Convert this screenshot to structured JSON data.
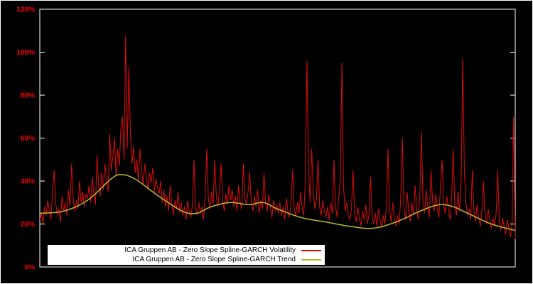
{
  "chart_data": {
    "type": "line",
    "title": "",
    "y_axis": {
      "min": 0,
      "max": 120,
      "unit": "%",
      "tick_labels": [
        "0%",
        "20%",
        "40%",
        "60%",
        "80%",
        "100%",
        "120%"
      ]
    },
    "x_axis": {
      "tick_labels": []
    },
    "legend": {
      "position": "bottom-left",
      "entries": [
        {
          "label": "ICA Gruppen AB - Zero Slope Spline-GARCH Volatility",
          "color": "#dd0d0d"
        },
        {
          "label": "ICA Gruppen AB - Zero Slope Spline-GARCH Trend",
          "color": "#bcbc2e"
        }
      ]
    },
    "series": [
      {
        "name": "ICA Gruppen AB - Zero Slope Spline-GARCH Volatility",
        "color": "#dd0d0d",
        "values": [
          22,
          25,
          20,
          28,
          24,
          31,
          26,
          22,
          35,
          45,
          30,
          24,
          27,
          21,
          33,
          26,
          30,
          24,
          36,
          28,
          48,
          32,
          26,
          31,
          27,
          40,
          30,
          35,
          28,
          34,
          32,
          38,
          30,
          42,
          34,
          29,
          52,
          38,
          33,
          44,
          36,
          48,
          40,
          35,
          62,
          45,
          52,
          60,
          42,
          55,
          47,
          65,
          70,
          50,
          108,
          55,
          93,
          62,
          48,
          56,
          44,
          50,
          40,
          55,
          45,
          38,
          48,
          42,
          36,
          44,
          39,
          46,
          35,
          41,
          37,
          34,
          40,
          30,
          36,
          28,
          33,
          26,
          38,
          29,
          24,
          31,
          27,
          35,
          25,
          30,
          24,
          28,
          22,
          31,
          26,
          23,
          29,
          50,
          27,
          24,
          30,
          25,
          28,
          22,
          33,
          55,
          32,
          27,
          35,
          29,
          50,
          33,
          28,
          36,
          48,
          31,
          26,
          34,
          29,
          38,
          31,
          36,
          28,
          33,
          26,
          38,
          30,
          27,
          48,
          32,
          29,
          35,
          44,
          30,
          26,
          33,
          28,
          36,
          25,
          31,
          27,
          44,
          30,
          26,
          34,
          28,
          23,
          31,
          26,
          29,
          25,
          30,
          24,
          28,
          22,
          32,
          26,
          23,
          29,
          45,
          27,
          24,
          30,
          25,
          35,
          28,
          24,
          40,
          96,
          45,
          30,
          55,
          35,
          27,
          32,
          50,
          28,
          24,
          31,
          26,
          23,
          28,
          22,
          30,
          25,
          50,
          28,
          23,
          32,
          40,
          95,
          38,
          26,
          30,
          24,
          22,
          27,
          45,
          25,
          21,
          28,
          23,
          19,
          26,
          22,
          29,
          20,
          24,
          42,
          23,
          20,
          25,
          19,
          27,
          22,
          18,
          24,
          20,
          28,
          55,
          26,
          21,
          30,
          23,
          19,
          24,
          20,
          32,
          60,
          28,
          22,
          35,
          26,
          21,
          30,
          24,
          38,
          27,
          22,
          33,
          63,
          30,
          25,
          36,
          28,
          23,
          45,
          31,
          26,
          34,
          27,
          23,
          38,
          50,
          29,
          25,
          33,
          27,
          22,
          31,
          55,
          28,
          24,
          35,
          26,
          40,
          97,
          45,
          30,
          24,
          27,
          22,
          45,
          26,
          21,
          29,
          23,
          19,
          26,
          40,
          24,
          20,
          27,
          22,
          18,
          23,
          19,
          25,
          45,
          21,
          17,
          23,
          19,
          15,
          22,
          18,
          14,
          20,
          70,
          13
        ]
      },
      {
        "name": "ICA Gruppen AB - Zero Slope Spline-GARCH Trend",
        "color": "#bcbc2e",
        "control_points": [
          [
            0.0,
            25
          ],
          [
            0.05,
            26
          ],
          [
            0.1,
            31
          ],
          [
            0.15,
            41
          ],
          [
            0.17,
            43
          ],
          [
            0.2,
            41
          ],
          [
            0.25,
            33
          ],
          [
            0.3,
            26
          ],
          [
            0.33,
            25
          ],
          [
            0.36,
            28
          ],
          [
            0.4,
            30
          ],
          [
            0.44,
            29
          ],
          [
            0.47,
            30
          ],
          [
            0.5,
            27
          ],
          [
            0.55,
            23
          ],
          [
            0.6,
            21
          ],
          [
            0.65,
            19
          ],
          [
            0.7,
            18
          ],
          [
            0.75,
            21
          ],
          [
            0.8,
            26
          ],
          [
            0.84,
            29
          ],
          [
            0.87,
            28
          ],
          [
            0.9,
            25
          ],
          [
            0.95,
            20
          ],
          [
            1.0,
            17
          ]
        ]
      }
    ],
    "colors": {
      "background": "#000000",
      "plot_border": "#ffffff",
      "axis_label": "#ff0000",
      "legend_background": "#ffffff",
      "legend_text": "#000000"
    }
  }
}
